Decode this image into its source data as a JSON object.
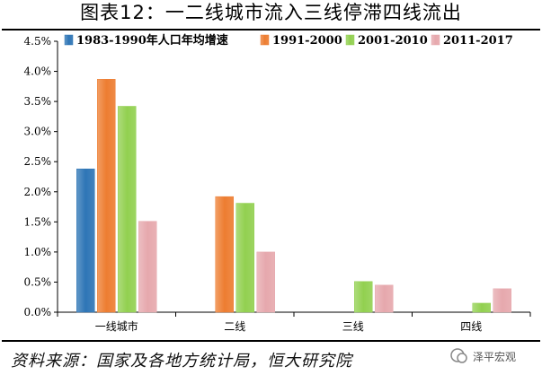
{
  "title": "图表12：一二线城市流入三线停滞四线流出",
  "source": "资料来源：国家及各地方统计局，恒大研究院",
  "watermark": "泽平宏观",
  "chart_data": {
    "type": "bar",
    "categories": [
      "一线城市",
      "二线",
      "三线",
      "四线"
    ],
    "series": [
      {
        "name": "1983-1990年人口年均增速",
        "color": "#2E75B6",
        "values": [
          2.38,
          null,
          null,
          null
        ]
      },
      {
        "name": "1991-2000",
        "color": "#ED7D31",
        "values": [
          3.87,
          1.92,
          null,
          null
        ]
      },
      {
        "name": "2001-2010",
        "color": "#92D050",
        "values": [
          3.42,
          1.81,
          0.51,
          0.15
        ]
      },
      {
        "name": "2011-2017",
        "color": "#E6A8AD",
        "values": [
          1.51,
          1.0,
          0.45,
          0.39
        ]
      }
    ],
    "yticks": [
      "0.0%",
      "0.5%",
      "1.0%",
      "1.5%",
      "2.0%",
      "2.5%",
      "3.0%",
      "3.5%",
      "4.0%",
      "4.5%"
    ],
    "ylim": [
      0,
      4.5
    ],
    "legend_position": "top",
    "grid": false
  }
}
